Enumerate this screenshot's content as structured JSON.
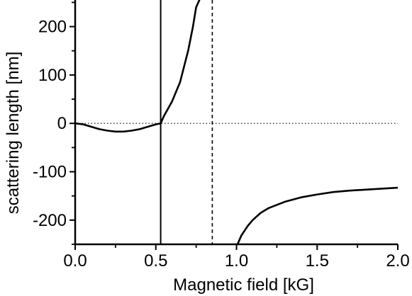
{
  "chart_data": {
    "type": "line",
    "title": "",
    "xlabel": "Magnetic field [kG]",
    "ylabel": "scattering length [nm]",
    "xlim": [
      0.0,
      2.0
    ],
    "ylim": [
      -250,
      255
    ],
    "x_ticks": [
      0.0,
      0.5,
      1.0,
      1.5,
      2.0
    ],
    "x_tick_labels": [
      "0.0",
      "0.5",
      "1.0",
      "1.5",
      "2.0"
    ],
    "y_ticks": [
      -200,
      -100,
      0,
      100,
      200
    ],
    "y_tick_labels": [
      "-200",
      "-100",
      "0",
      "100",
      "200"
    ],
    "grid": false,
    "legend": "none",
    "series": [
      {
        "x": [
          0.0,
          0.05,
          0.1,
          0.15,
          0.2,
          0.25,
          0.3,
          0.35,
          0.4,
          0.45,
          0.5,
          0.53,
          0.55,
          0.6,
          0.65,
          0.7,
          0.73,
          0.75,
          0.77
        ],
        "y": [
          0,
          -2,
          -7,
          -12,
          -15,
          -17,
          -17,
          -15,
          -12,
          -7,
          -2,
          0,
          15,
          45,
          85,
          150,
          200,
          240,
          255
        ],
        "color": "#000000",
        "style": "solid"
      },
      {
        "x": [
          1.0,
          1.03,
          1.07,
          1.1,
          1.15,
          1.2,
          1.3,
          1.4,
          1.5,
          1.6,
          1.7,
          1.8,
          1.9,
          2.0
        ],
        "y": [
          -255,
          -232,
          -212,
          -200,
          -185,
          -175,
          -162,
          -153,
          -147,
          -142,
          -139,
          -137,
          -135,
          -133
        ],
        "color": "#000000",
        "style": "solid"
      }
    ],
    "reference_lines": [
      {
        "orientation": "vertical",
        "x": 0.53,
        "style": "solid",
        "color": "#000000"
      },
      {
        "orientation": "vertical",
        "x": 0.85,
        "style": "dashed",
        "color": "#000000"
      },
      {
        "orientation": "horizontal",
        "y": 0,
        "style": "dotted",
        "color": "#000000"
      }
    ]
  }
}
